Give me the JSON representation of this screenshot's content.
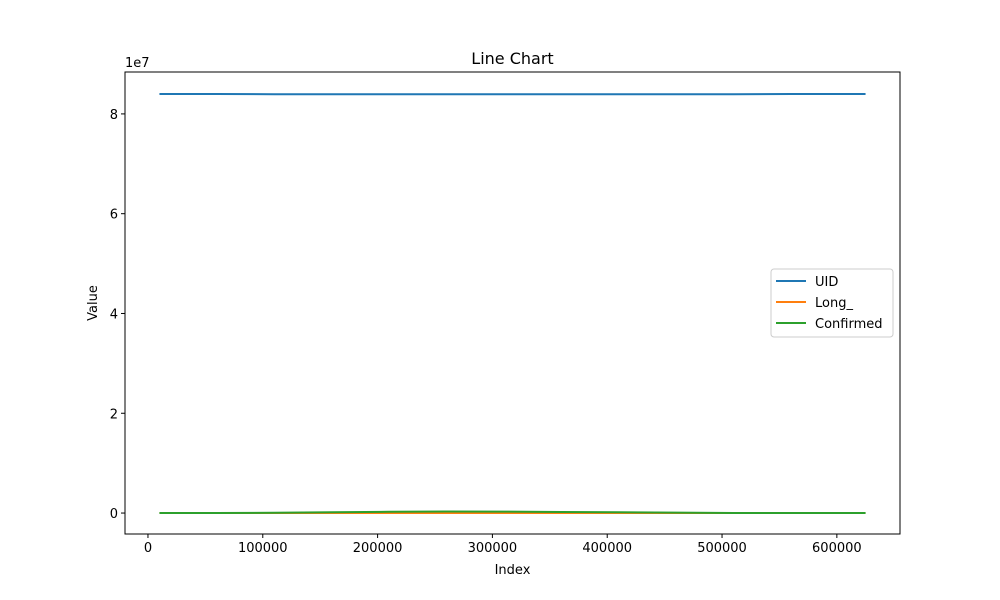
{
  "chart_data": {
    "type": "line",
    "title": "Line Chart",
    "xlabel": "Index",
    "ylabel": "Value",
    "y_offset_text": "1e7",
    "xlim": [
      -20000,
      655000
    ],
    "ylim": [
      -4200000,
      88400000
    ],
    "x_ticks": [
      0,
      100000,
      200000,
      300000,
      400000,
      500000,
      600000
    ],
    "x_tick_labels": [
      "0",
      "100000",
      "200000",
      "300000",
      "400000",
      "500000",
      "600000"
    ],
    "y_ticks": [
      0,
      20000000,
      40000000,
      60000000,
      80000000
    ],
    "y_tick_labels": [
      "0",
      "2",
      "4",
      "6",
      "8"
    ],
    "grid": false,
    "legend_position": "center-right",
    "x": [
      10000,
      60000,
      110000,
      160000,
      210000,
      260000,
      310000,
      360000,
      410000,
      460000,
      510000,
      560000,
      610000,
      625000
    ],
    "series": [
      {
        "name": "UID",
        "color": "#1f77b4",
        "values": [
          84000000,
          84000000,
          83950000,
          83950000,
          83950000,
          83950000,
          83950000,
          83950000,
          83950000,
          83950000,
          83950000,
          84000000,
          84000000,
          84000000
        ]
      },
      {
        "name": "Long_",
        "color": "#ff7f0e",
        "values": [
          -80,
          -80,
          -85,
          -85,
          -90,
          -90,
          -90,
          -85,
          -85,
          -80,
          -80,
          -95,
          -95,
          -95
        ]
      },
      {
        "name": "Confirmed",
        "color": "#2ca02c",
        "values": [
          1000,
          2000,
          50000,
          150000,
          250000,
          300000,
          280000,
          220000,
          150000,
          80000,
          20000,
          5000,
          2000,
          1500
        ]
      }
    ]
  }
}
